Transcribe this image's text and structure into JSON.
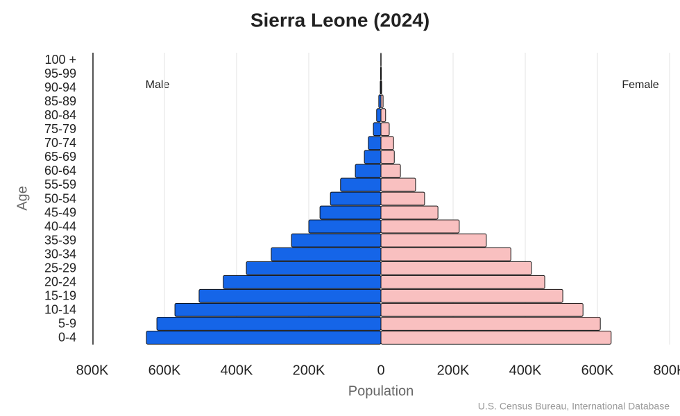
{
  "chart_data": {
    "type": "pyramid",
    "title": "Sierra Leone (2024)",
    "x_label": "Population",
    "y_label": "Age",
    "source": "U.S. Census Bureau, International Database",
    "categories": [
      "0-4",
      "5-9",
      "10-14",
      "15-19",
      "20-24",
      "25-29",
      "30-34",
      "35-39",
      "40-44",
      "45-49",
      "50-54",
      "55-59",
      "60-64",
      "65-69",
      "70-74",
      "75-79",
      "80-84",
      "85-89",
      "90-94",
      "95-99",
      "100 +"
    ],
    "series": [
      {
        "name": "Male",
        "color": "#1565e8",
        "values": [
          -650000,
          -621000,
          -571000,
          -504000,
          -437000,
          -373000,
          -304000,
          -248000,
          -200000,
          -169000,
          -140000,
          -112000,
          -71000,
          -46000,
          -35000,
          -21000,
          -12000,
          -6000,
          -2000,
          -1000,
          -500
        ]
      },
      {
        "name": "Female",
        "color": "#f9c0c0",
        "values": [
          638000,
          608000,
          560000,
          504000,
          454000,
          417000,
          360000,
          292000,
          217000,
          158000,
          121000,
          96000,
          54000,
          37000,
          35000,
          23000,
          13000,
          6000,
          2000,
          1000,
          500
        ]
      }
    ],
    "xlim": [
      -800000,
      800000
    ],
    "xticks": [
      {
        "value": -800000,
        "label": "800K"
      },
      {
        "value": -600000,
        "label": "600K"
      },
      {
        "value": -400000,
        "label": "400K"
      },
      {
        "value": -200000,
        "label": "200K"
      },
      0,
      {
        "value": 200000,
        "label": "200K"
      },
      {
        "value": 400000,
        "label": "400K"
      },
      {
        "value": 600000,
        "label": "600K"
      },
      {
        "value": 800000,
        "label": "800K"
      }
    ],
    "grid": true
  }
}
